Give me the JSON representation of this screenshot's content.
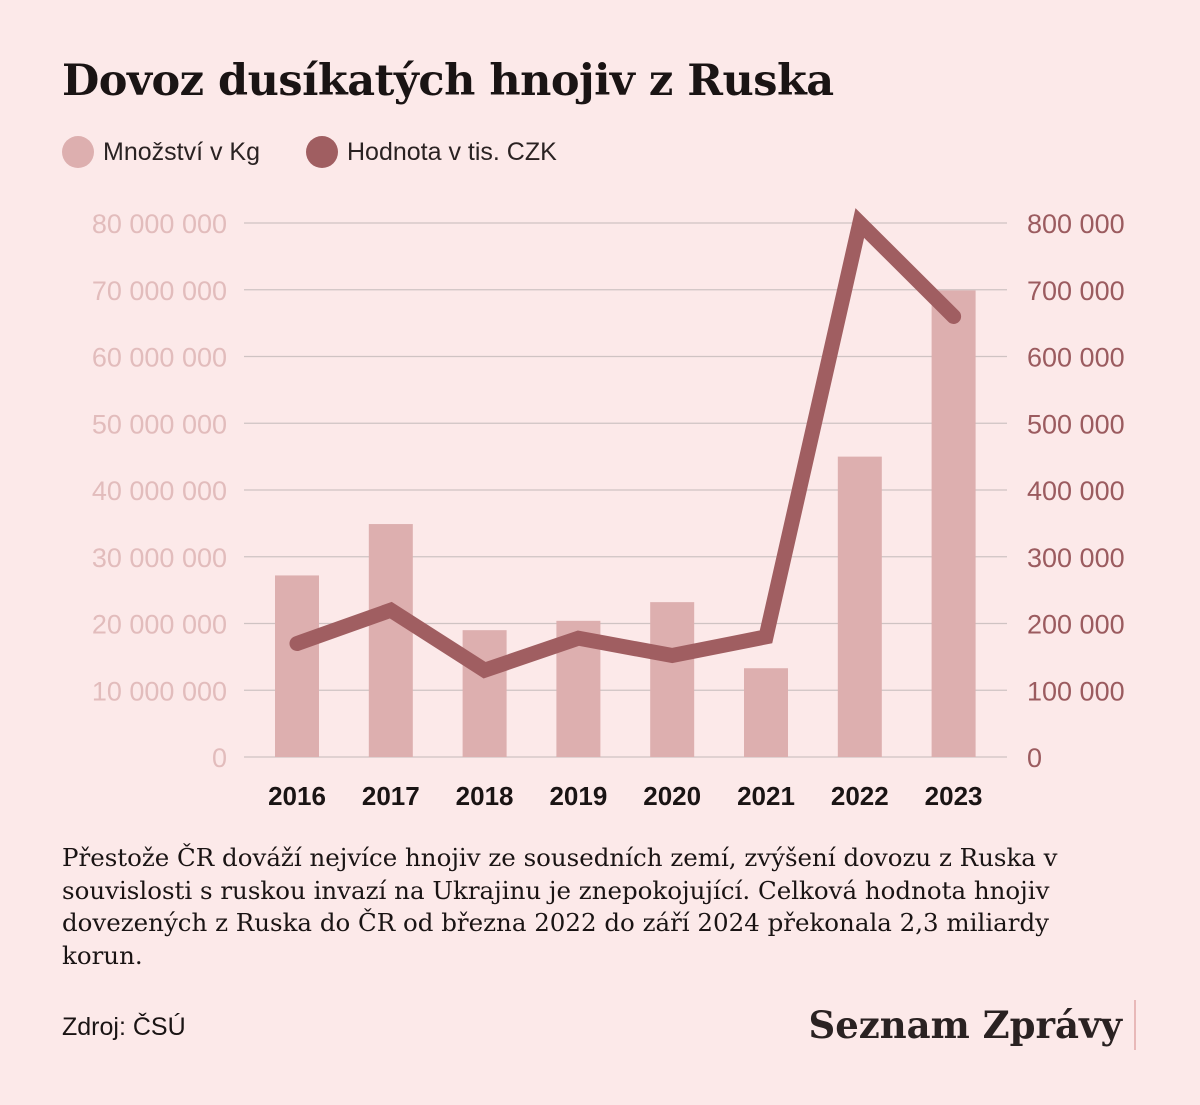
{
  "title": "Dovoz dusíkatých hnojiv z Ruska",
  "legend": [
    {
      "label": "Množství v Kg",
      "color": "#ddafaf"
    },
    {
      "label": "Hodnota v tis. CZK",
      "color": "#a05e61"
    }
  ],
  "colors": {
    "bar": "#ddafaf",
    "line": "#a05e61",
    "grid": "#cfc3c3",
    "left_axis": "#e2bcbc",
    "right_axis": "#9b5b5f",
    "background": "#fce9e9"
  },
  "chart_data": {
    "type": "bar",
    "categories": [
      "2016",
      "2017",
      "2018",
      "2019",
      "2020",
      "2021",
      "2022",
      "2023"
    ],
    "series": [
      {
        "name": "Množství v Kg",
        "type": "bar",
        "axis": "left",
        "values": [
          27200000,
          34900000,
          19000000,
          20400000,
          23200000,
          13300000,
          45000000,
          69900000
        ]
      },
      {
        "name": "Hodnota v tis. CZK",
        "type": "line",
        "axis": "right",
        "values": [
          170000,
          220000,
          130000,
          178000,
          152000,
          180000,
          800000,
          660000
        ]
      }
    ],
    "ylim_left": [
      0,
      80000000
    ],
    "ylim_right": [
      0,
      800000
    ],
    "yticks_left": [
      "0",
      "10 000 000",
      "20 000 000",
      "30 000 000",
      "40 000 000",
      "50 000 000",
      "60 000 000",
      "70 000 000",
      "80 000 000"
    ],
    "yticks_right": [
      "0",
      "100 000",
      "200 000",
      "300 000",
      "400 000",
      "500 000",
      "600 000",
      "700 000",
      "800 000"
    ],
    "grid": true
  },
  "note": "Přestože ČR dováží nejvíce hnojiv ze sousedních zemí, zvýšení dovozu z Ruska v souvislosti s ruskou invazí na Ukrajinu je znepokojující. Celková hodnota hnojiv dovezených z Ruska do ČR od března 2022 do září 2024 překonala 2,3 miliardy korun.",
  "source": "Zdroj: ČSÚ",
  "brand": "Seznam Zprávy"
}
